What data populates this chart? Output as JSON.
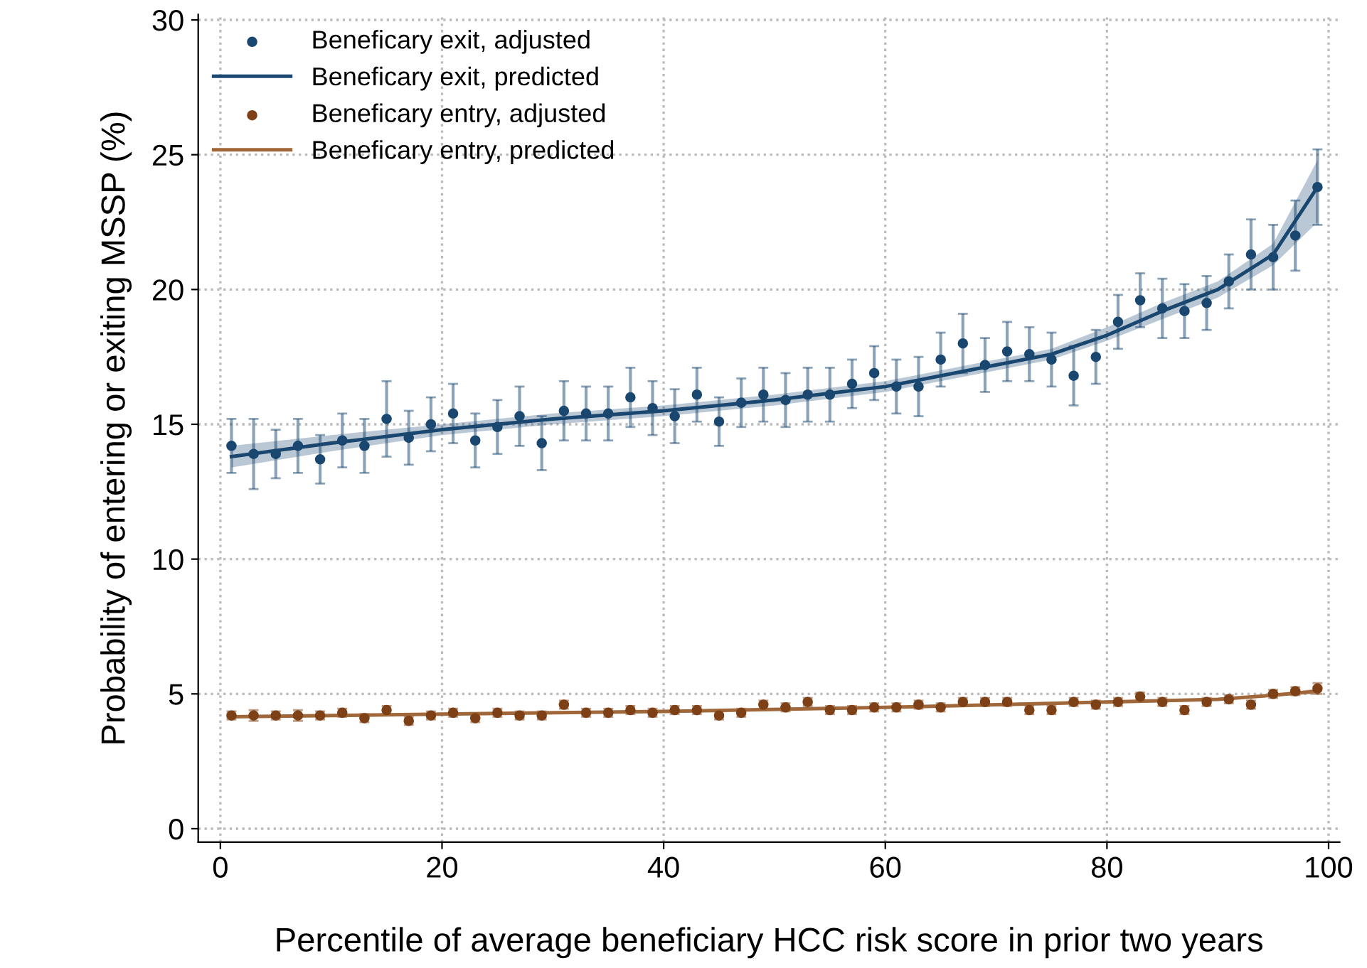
{
  "chart_data": {
    "type": "scatter",
    "xlabel": "Percentile of average beneficiary HCC risk score in prior two years",
    "ylabel": "Probability of entering or exiting MSSP (%)",
    "xlim": [
      -2,
      101
    ],
    "ylim": [
      -0.5,
      30.2
    ],
    "xticks": [
      0,
      20,
      40,
      60,
      80,
      100
    ],
    "yticks": [
      0,
      5,
      10,
      15,
      20,
      25,
      30
    ],
    "grid": true,
    "legend": "top left",
    "series": [
      {
        "name": "Beneficary exit, adjusted",
        "marker": "circle",
        "color": "#1a476f",
        "x": [
          1,
          3,
          5,
          7,
          9,
          11,
          13,
          15,
          17,
          19,
          21,
          23,
          25,
          27,
          29,
          31,
          33,
          35,
          37,
          39,
          41,
          43,
          45,
          47,
          49,
          51,
          53,
          55,
          57,
          59,
          61,
          63,
          65,
          67,
          69,
          71,
          73,
          75,
          77,
          79,
          81,
          83,
          85,
          87,
          89,
          91,
          93,
          95,
          97,
          99
        ],
        "values": [
          14.2,
          13.9,
          13.9,
          14.2,
          13.7,
          14.4,
          14.2,
          15.2,
          14.5,
          15.0,
          15.4,
          14.4,
          14.9,
          15.3,
          14.3,
          15.5,
          15.4,
          15.4,
          16.0,
          15.6,
          15.3,
          16.1,
          15.1,
          15.8,
          16.1,
          15.9,
          16.1,
          16.1,
          16.5,
          16.9,
          16.4,
          16.4,
          17.4,
          18.0,
          17.2,
          17.7,
          17.6,
          17.4,
          16.8,
          17.5,
          18.8,
          19.6,
          19.3,
          19.2,
          19.5,
          20.3,
          21.3,
          21.2,
          22.0,
          23.8
        ],
        "errors": [
          1.0,
          1.3,
          0.9,
          1.0,
          0.9,
          1.0,
          1.0,
          1.4,
          1.0,
          1.0,
          1.1,
          1.0,
          1.0,
          1.1,
          1.0,
          1.1,
          1.0,
          1.0,
          1.1,
          1.0,
          1.0,
          1.0,
          0.9,
          0.9,
          1.0,
          1.0,
          1.0,
          1.0,
          0.9,
          1.0,
          1.0,
          1.1,
          1.0,
          1.1,
          1.0,
          1.1,
          1.0,
          1.0,
          1.1,
          1.0,
          1.0,
          1.0,
          1.1,
          1.0,
          1.0,
          1.0,
          1.3,
          1.2,
          1.3,
          1.4
        ]
      },
      {
        "name": "Beneficary exit, predicted",
        "type": "line",
        "marker": "none",
        "color": "#1a476f",
        "x": [
          1,
          10,
          20,
          30,
          40,
          50,
          60,
          70,
          75,
          80,
          85,
          90,
          95,
          99
        ],
        "values": [
          13.8,
          14.3,
          14.8,
          15.2,
          15.5,
          15.9,
          16.4,
          17.2,
          17.6,
          18.3,
          19.2,
          20.0,
          21.3,
          23.8
        ],
        "lower": [
          13.4,
          14.0,
          14.6,
          15.0,
          15.3,
          15.7,
          16.2,
          17.0,
          17.4,
          18.1,
          18.9,
          19.7,
          20.9,
          22.5
        ],
        "upper": [
          14.2,
          14.6,
          15.0,
          15.4,
          15.7,
          16.1,
          16.6,
          17.4,
          17.8,
          18.6,
          19.5,
          20.3,
          21.7,
          24.8
        ]
      },
      {
        "name": "Beneficary entry, adjusted",
        "marker": "circle",
        "color": "#7e4016",
        "x": [
          1,
          3,
          5,
          7,
          9,
          11,
          13,
          15,
          17,
          19,
          21,
          23,
          25,
          27,
          29,
          31,
          33,
          35,
          37,
          39,
          41,
          43,
          45,
          47,
          49,
          51,
          53,
          55,
          57,
          59,
          61,
          63,
          65,
          67,
          69,
          71,
          73,
          75,
          77,
          79,
          81,
          83,
          85,
          87,
          89,
          91,
          93,
          95,
          97,
          99
        ],
        "values": [
          4.2,
          4.2,
          4.2,
          4.2,
          4.2,
          4.3,
          4.1,
          4.4,
          4.0,
          4.2,
          4.3,
          4.1,
          4.3,
          4.2,
          4.2,
          4.6,
          4.3,
          4.3,
          4.4,
          4.3,
          4.4,
          4.4,
          4.2,
          4.3,
          4.6,
          4.5,
          4.7,
          4.4,
          4.4,
          4.5,
          4.5,
          4.6,
          4.5,
          4.7,
          4.7,
          4.7,
          4.4,
          4.4,
          4.7,
          4.6,
          4.7,
          4.9,
          4.7,
          4.4,
          4.7,
          4.8,
          4.6,
          5.0,
          5.1,
          5.2
        ],
        "errors": [
          0.15,
          0.2,
          0.15,
          0.2,
          0.15,
          0.15,
          0.15,
          0.15,
          0.15,
          0.15,
          0.15,
          0.15,
          0.15,
          0.15,
          0.15,
          0.15,
          0.15,
          0.15,
          0.15,
          0.15,
          0.15,
          0.15,
          0.15,
          0.15,
          0.15,
          0.15,
          0.15,
          0.15,
          0.15,
          0.15,
          0.15,
          0.15,
          0.15,
          0.15,
          0.15,
          0.15,
          0.15,
          0.15,
          0.15,
          0.15,
          0.15,
          0.15,
          0.15,
          0.15,
          0.15,
          0.15,
          0.15,
          0.15,
          0.15,
          0.2
        ]
      },
      {
        "name": "Beneficary entry, predicted",
        "type": "line",
        "marker": "none",
        "color": "#a0673a",
        "x": [
          1,
          20,
          40,
          60,
          80,
          90,
          95,
          99
        ],
        "values": [
          4.15,
          4.25,
          4.35,
          4.5,
          4.7,
          4.8,
          4.95,
          5.1
        ],
        "lower": [
          4.1,
          4.2,
          4.3,
          4.45,
          4.65,
          4.75,
          4.9,
          5.0
        ],
        "upper": [
          4.2,
          4.3,
          4.4,
          4.55,
          4.75,
          4.85,
          5.0,
          5.2
        ]
      }
    ]
  }
}
